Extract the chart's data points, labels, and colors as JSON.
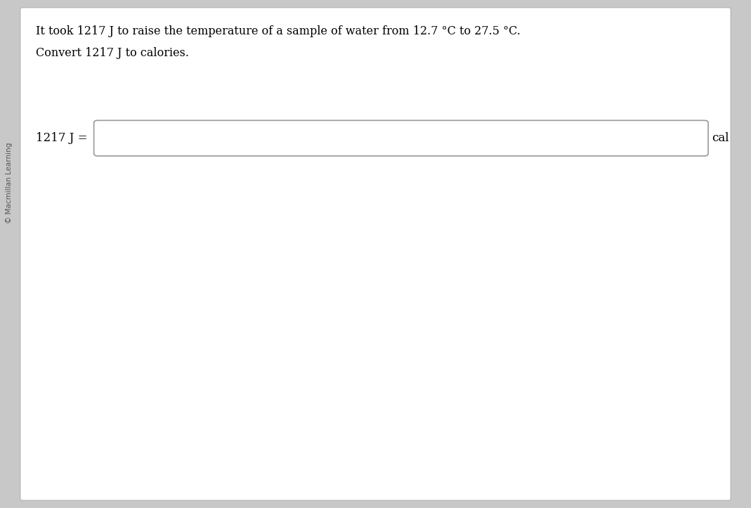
{
  "background_color": "#c8c8c8",
  "panel_color": "#ffffff",
  "panel_border_color": "#b0b0b0",
  "line1": "It took 1217 J to raise the temperature of a sample of water from 12.7 °C to 27.5 °C.",
  "line2": "Convert 1217 J to calories.",
  "label_left": "1217 J =",
  "label_right": "cal",
  "watermark": "© Macmillan Learning",
  "input_box_color": "#ffffff",
  "input_box_border": "#999999",
  "text_color": "#000000",
  "font_size_main": 11.5,
  "font_size_label": 12,
  "font_size_watermark": 7.5
}
